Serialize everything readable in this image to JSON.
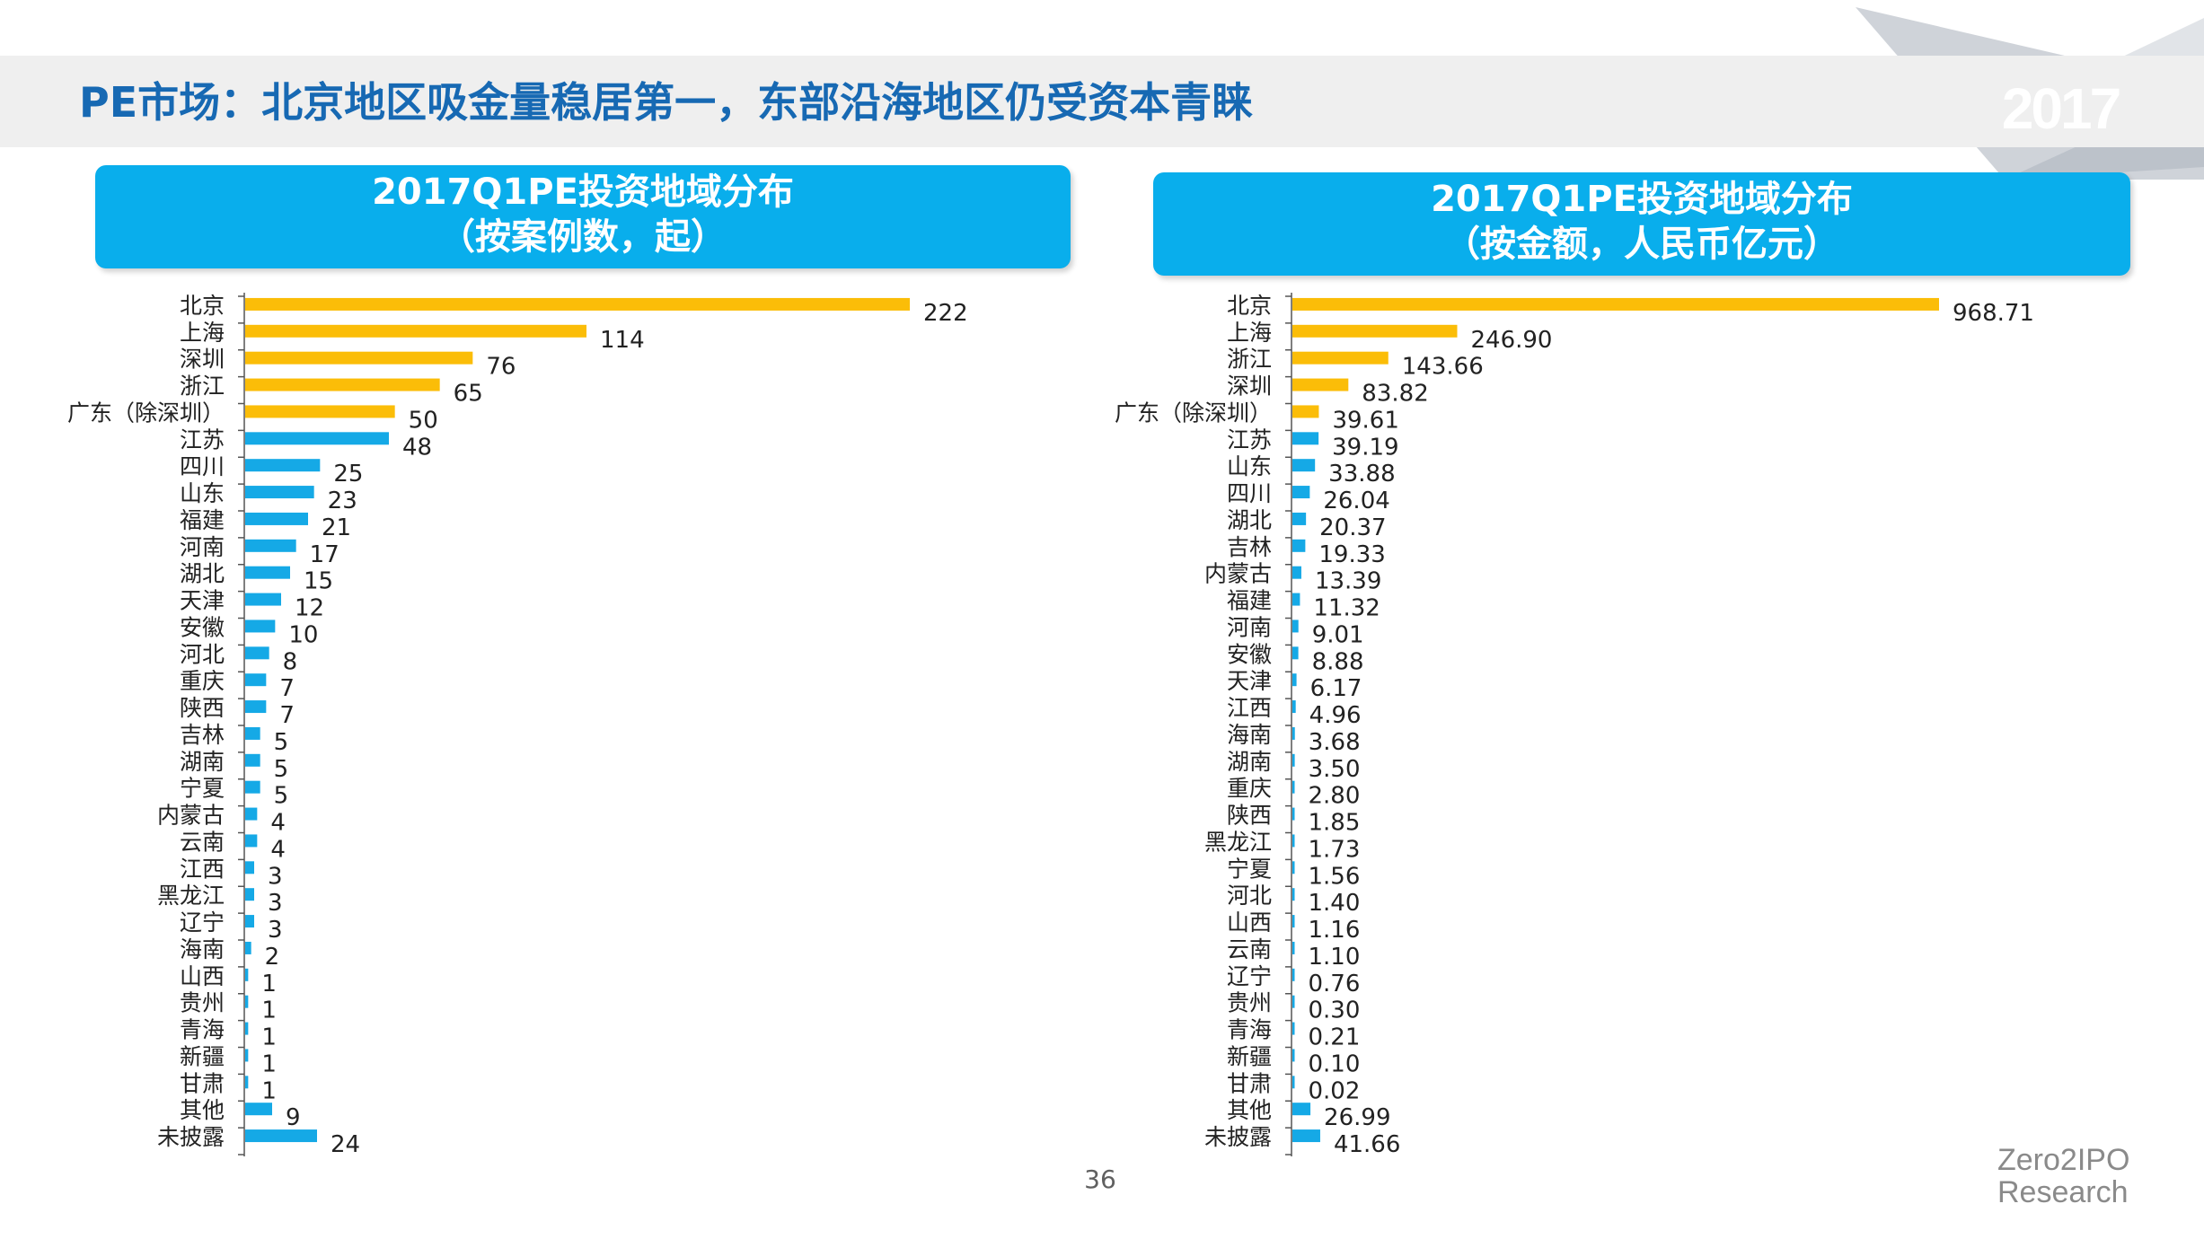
{
  "page_title": "PE市场：北京地区吸金量稳居第一，东部沿海地区仍受资本青睐",
  "year_badge": "2017",
  "page_number": "36",
  "logo": {
    "line1": "Zero2IPO",
    "line2": "Research"
  },
  "colors": {
    "highlight": "#fbbd08",
    "normal": "#15a9e6",
    "header": "#09aeec",
    "title": "#1769b3"
  },
  "left_header": {
    "line1": "2017Q1PE投资地域分布",
    "line2": "（按案例数，起）"
  },
  "right_header": {
    "line1": "2017Q1PE投资地域分布",
    "line2": "（按金额，人民币亿元）"
  },
  "chart_data": [
    {
      "type": "bar",
      "orientation": "horizontal",
      "title": "2017Q1PE投资地域分布（按案例数，起）",
      "categories": [
        "北京",
        "上海",
        "深圳",
        "浙江",
        "广东（除深圳）",
        "江苏",
        "四川",
        "山东",
        "福建",
        "河南",
        "湖北",
        "天津",
        "安徽",
        "河北",
        "重庆",
        "陕西",
        "吉林",
        "湖南",
        "宁夏",
        "内蒙古",
        "云南",
        "江西",
        "黑龙江",
        "辽宁",
        "海南",
        "山西",
        "贵州",
        "青海",
        "新疆",
        "甘肃",
        "其他",
        "未披露"
      ],
      "values": [
        222,
        114,
        76,
        65,
        50,
        48,
        25,
        23,
        21,
        17,
        15,
        12,
        10,
        8,
        7,
        7,
        5,
        5,
        5,
        4,
        4,
        3,
        3,
        3,
        2,
        1,
        1,
        1,
        1,
        1,
        9,
        24
      ],
      "value_labels": [
        "222",
        "114",
        "76",
        "65",
        "50",
        "48",
        "25",
        "23",
        "21",
        "17",
        "15",
        "12",
        "10",
        "8",
        "7",
        "7",
        "5",
        "5",
        "5",
        "4",
        "4",
        "3",
        "3",
        "3",
        "2",
        "1",
        "1",
        "1",
        "1",
        "1",
        "9",
        "24"
      ],
      "highlighted_count": 5,
      "xlim": [
        0,
        222
      ]
    },
    {
      "type": "bar",
      "orientation": "horizontal",
      "title": "2017Q1PE投资地域分布（按金额，人民币亿元）",
      "categories": [
        "北京",
        "上海",
        "浙江",
        "深圳",
        "广东（除深圳）",
        "江苏",
        "山东",
        "四川",
        "湖北",
        "吉林",
        "内蒙古",
        "福建",
        "河南",
        "安徽",
        "天津",
        "江西",
        "海南",
        "湖南",
        "重庆",
        "陕西",
        "黑龙江",
        "宁夏",
        "河北",
        "山西",
        "云南",
        "辽宁",
        "贵州",
        "青海",
        "新疆",
        "甘肃",
        "其他",
        "未披露"
      ],
      "values": [
        968.71,
        246.9,
        143.66,
        83.82,
        39.61,
        39.19,
        33.88,
        26.04,
        20.37,
        19.33,
        13.39,
        11.32,
        9.01,
        8.88,
        6.17,
        4.96,
        3.68,
        3.5,
        2.8,
        1.85,
        1.73,
        1.56,
        1.4,
        1.16,
        1.1,
        0.76,
        0.3,
        0.21,
        0.1,
        0.02,
        26.99,
        41.66
      ],
      "value_labels": [
        "968.71",
        "246.90",
        "143.66",
        "83.82",
        "39.61",
        "39.19",
        "33.88",
        "26.04",
        "20.37",
        "19.33",
        "13.39",
        "11.32",
        "9.01",
        "8.88",
        "6.17",
        "4.96",
        "3.68",
        "3.50",
        "2.80",
        "1.85",
        "1.73",
        "1.56",
        "1.40",
        "1.16",
        "1.10",
        "0.76",
        "0.30",
        "0.21",
        "0.10",
        "0.02",
        "26.99",
        "41.66"
      ],
      "highlighted_count": 5,
      "xlim": [
        0,
        968.71
      ]
    }
  ]
}
